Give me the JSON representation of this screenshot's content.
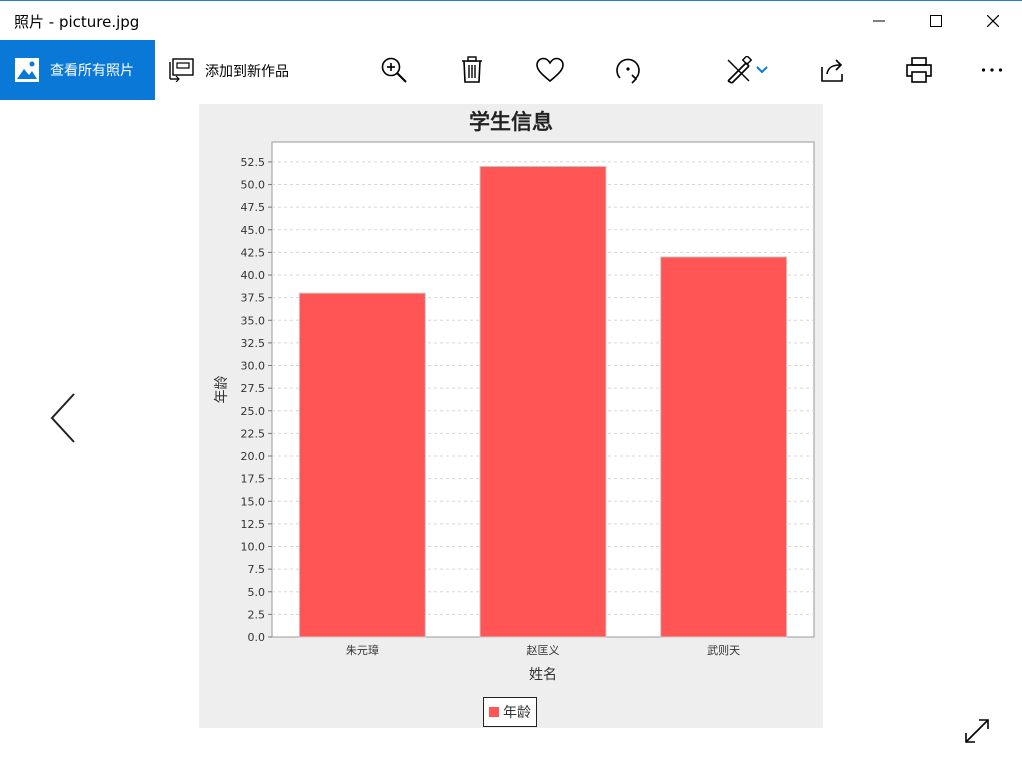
{
  "window": {
    "title": "照片 - picture.jpg"
  },
  "toolbar": {
    "view_all_label": "查看所有照片",
    "add_creation_label": "添加到新作品",
    "icons": [
      "zoom-in-icon",
      "delete-icon",
      "heart-icon",
      "rotate-icon",
      "edit-icon",
      "share-icon",
      "print-icon",
      "more-icon"
    ]
  },
  "colors": {
    "accent": "#0a78d7",
    "bar": "#ff5555",
    "plot_bg": "#ffffff",
    "image_bg": "#eeeeee"
  },
  "chart_data": {
    "type": "bar",
    "title": "学生信息",
    "xlabel": "姓名",
    "ylabel": "年龄",
    "categories": [
      "朱元璋",
      "赵匡义",
      "武则天"
    ],
    "series": [
      {
        "name": "年龄",
        "values": [
          38,
          52,
          42
        ]
      }
    ],
    "ylim": [
      0,
      54.7
    ],
    "yticks": [
      "0.0",
      "2.5",
      "5.0",
      "7.5",
      "10.0",
      "12.5",
      "15.0",
      "17.5",
      "20.0",
      "22.5",
      "25.0",
      "27.5",
      "30.0",
      "32.5",
      "35.0",
      "37.5",
      "40.0",
      "42.5",
      "45.0",
      "47.5",
      "50.0",
      "52.5"
    ],
    "grid": true,
    "legend": "bottom-center"
  }
}
